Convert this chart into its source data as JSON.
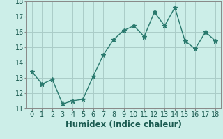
{
  "x": [
    0,
    1,
    2,
    3,
    4,
    5,
    6,
    7,
    8,
    9,
    10,
    11,
    12,
    13,
    14,
    15,
    16,
    17,
    18
  ],
  "y": [
    13.4,
    12.6,
    12.9,
    11.3,
    11.5,
    11.6,
    13.1,
    14.5,
    15.5,
    16.1,
    16.4,
    15.7,
    17.3,
    16.4,
    17.6,
    15.4,
    14.9,
    16.0,
    15.4
  ],
  "line_color": "#2a7a6e",
  "marker": "*",
  "marker_color": "#2a7a6e",
  "bg_color": "#cceee8",
  "grid_color": "#aaccc8",
  "spine_color": "#888888",
  "xlabel": "Humidex (Indice chaleur)",
  "tick_color": "#1a5a50",
  "ylim": [
    11,
    18
  ],
  "xlim": [
    -0.5,
    18.5
  ],
  "yticks": [
    11,
    12,
    13,
    14,
    15,
    16,
    17,
    18
  ],
  "xticks": [
    0,
    1,
    2,
    3,
    4,
    5,
    6,
    7,
    8,
    9,
    10,
    11,
    12,
    13,
    14,
    15,
    16,
    17,
    18
  ],
  "xlabel_fontsize": 8.5,
  "tick_fontsize": 7,
  "line_width": 1.0,
  "marker_size": 4.5
}
